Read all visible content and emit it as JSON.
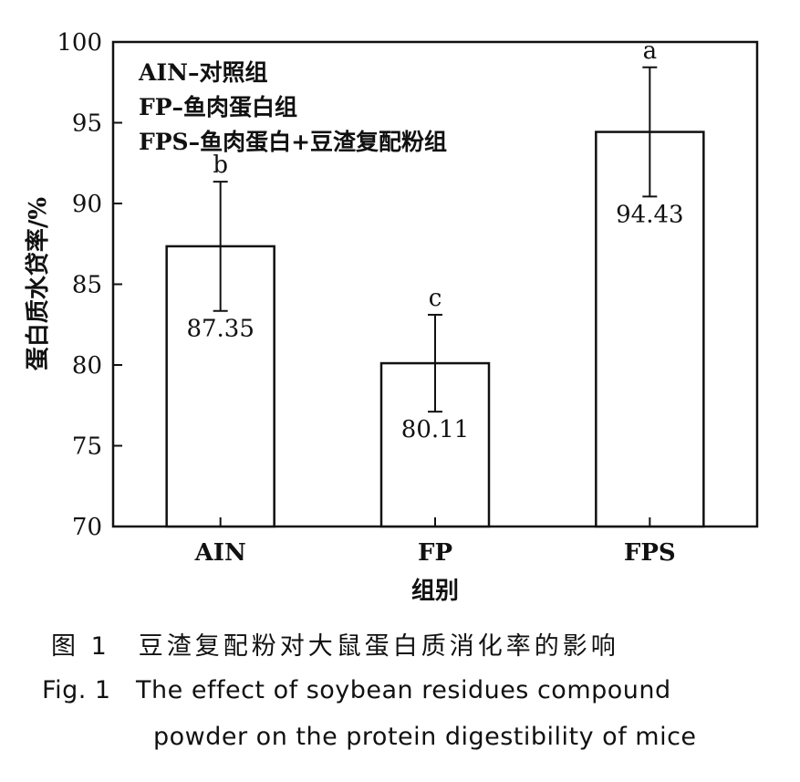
{
  "chart_data": {
    "type": "bar",
    "categories": [
      "AIN",
      "FP",
      "FPS"
    ],
    "values": [
      87.35,
      80.11,
      94.43
    ],
    "errors": [
      4.0,
      3.0,
      4.0
    ],
    "value_labels": [
      "87.35",
      "80.11",
      "94.43"
    ],
    "significance": [
      "b",
      "c",
      "a"
    ],
    "xlabel": "组别",
    "ylabel": "蛋白质水贷率/%",
    "ylim": [
      70,
      100
    ],
    "yticks": [
      70,
      75,
      80,
      85,
      90,
      95,
      100
    ],
    "grid": false,
    "legend_position": "top-left",
    "legend_lines": [
      "AIN–对照组",
      "FP–鱼肉蛋白组",
      "FPS–鱼肉蛋白+豆渣复配粉组"
    ]
  },
  "caption": {
    "zh": "图 1　豆渣复配粉对大鼠蛋白质消化率的影响",
    "en_line1": "Fig. 1　The effect of soybean residues compound",
    "en_line2": "powder on the protein digestibility of mice"
  }
}
